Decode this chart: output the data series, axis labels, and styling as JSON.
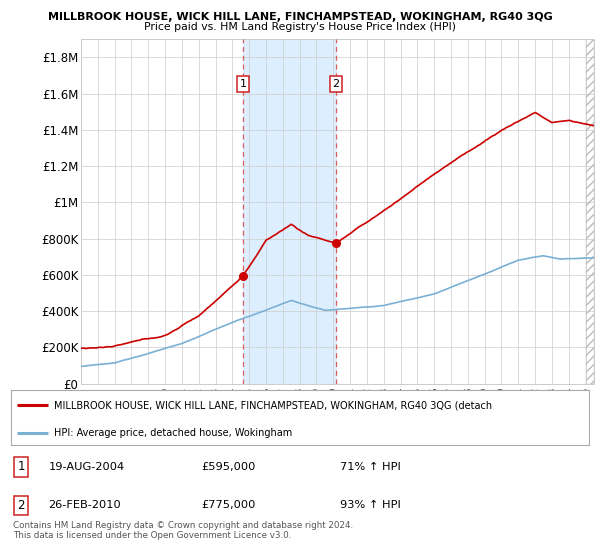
{
  "title1": "MILLBROOK HOUSE, WICK HILL LANE, FINCHAMPSTEAD, WOKINGHAM, RG40 3QG",
  "title2": "Price paid vs. HM Land Registry's House Price Index (HPI)",
  "ylim": [
    0,
    1900000
  ],
  "yticks": [
    0,
    200000,
    400000,
    600000,
    800000,
    1000000,
    1200000,
    1400000,
    1600000,
    1800000
  ],
  "ytick_labels": [
    "£0",
    "£200K",
    "£400K",
    "£600K",
    "£800K",
    "£1M",
    "£1.2M",
    "£1.4M",
    "£1.6M",
    "£1.8M"
  ],
  "xlim_start": 1995.0,
  "xlim_end": 2025.5,
  "transaction1_x": 2004.635,
  "transaction1_y": 595000,
  "transaction2_x": 2010.16,
  "transaction2_y": 775000,
  "hpi_line_color": "#7ab0d4",
  "property_line_color": "#cc0000",
  "shade_color": "#ddeeff",
  "hatch_color": "#aaaaaa",
  "legend_property_label": "MILLBROOK HOUSE, WICK HILL LANE, FINCHAMPSTEAD, WOKINGHAM, RG40 3QG (detach",
  "legend_hpi_label": "HPI: Average price, detached house, Wokingham",
  "table_row1": [
    "1",
    "19-AUG-2004",
    "£595,000",
    "71% ↑ HPI"
  ],
  "table_row2": [
    "2",
    "26-FEB-2010",
    "£775,000",
    "93% ↑ HPI"
  ],
  "footnote": "Contains HM Land Registry data © Crown copyright and database right 2024.\nThis data is licensed under the Open Government Licence v3.0.",
  "bg_color": "#ffffff",
  "grid_color": "#cccccc",
  "hatch_start": 2025.0
}
